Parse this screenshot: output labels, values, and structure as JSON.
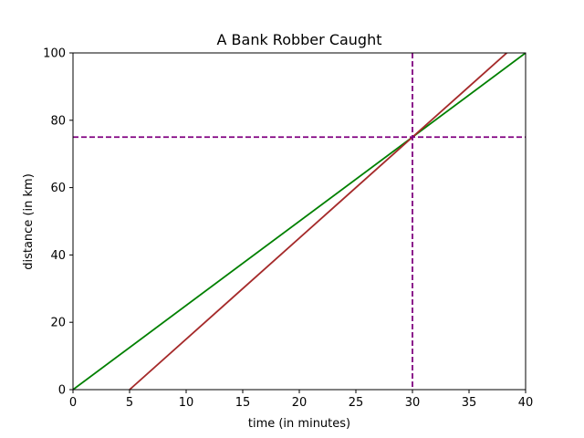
{
  "chart_data": {
    "type": "line",
    "title": "A Bank Robber Caught",
    "xlabel": "time (in minutes)",
    "ylabel": "distance (in km)",
    "xlim": [
      0,
      40
    ],
    "ylim": [
      0,
      100
    ],
    "xticks": [
      0,
      5,
      10,
      15,
      20,
      25,
      30,
      35,
      40
    ],
    "yticks": [
      0,
      20,
      40,
      60,
      80,
      100
    ],
    "grid": false,
    "legend": "none",
    "series": [
      {
        "color": "#008000",
        "style": "solid",
        "x": [
          0,
          40
        ],
        "y": [
          0,
          100
        ]
      },
      {
        "color": "#a52a2a",
        "style": "solid",
        "x": [
          5,
          40
        ],
        "y": [
          0,
          105
        ]
      }
    ],
    "reference_lines": [
      {
        "orientation": "vertical",
        "value": 30,
        "color": "#800080",
        "style": "dashed"
      },
      {
        "orientation": "horizontal",
        "value": 75,
        "color": "#800080",
        "style": "dashed"
      }
    ]
  }
}
